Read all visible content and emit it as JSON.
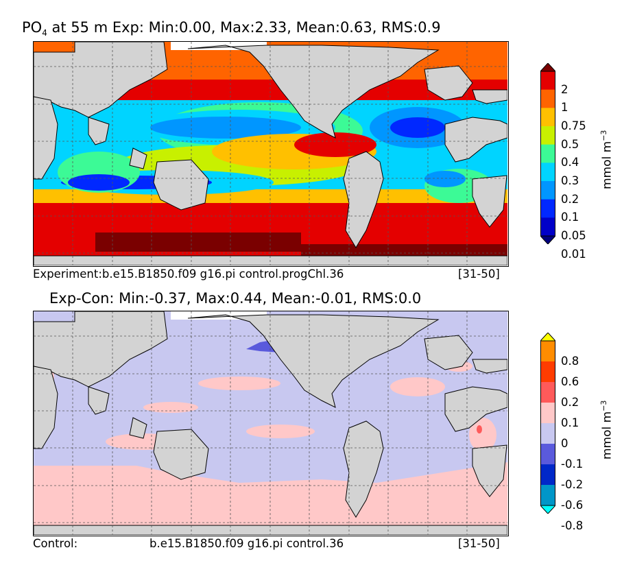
{
  "panel_top": {
    "title_var": "PO",
    "title_sub": "4",
    "title_rest": " at 55 m Exp: Min:0.00, Max:2.33, Mean:0.63, RMS:0.9",
    "caption_left": "Experiment:b.e15.B1850.f09 g16.pi control.progChl.36",
    "caption_right": "[31-50]",
    "colorbar": {
      "unit": "mmol m",
      "unit_exp": "−3",
      "ticks": [
        "2",
        "1",
        "0.75",
        "0.5",
        "0.4",
        "0.3",
        "0.2",
        "0.1",
        "0.05",
        "0.01"
      ],
      "colors": [
        "#7a0000",
        "#e40000",
        "#ff6400",
        "#ffc000",
        "#c8f000",
        "#3cfa96",
        "#00d4ff",
        "#0096ff",
        "#0028ff",
        "#0000c8",
        "#000080"
      ]
    }
  },
  "panel_bottom": {
    "title": "Exp-Con: Min:-0.37, Max:0.44, Mean:-0.01, RMS:0.0",
    "caption_left": "Control:",
    "caption_mid": "b.e15.B1850.f09 g16.pi control.36",
    "caption_right": "[31-50]",
    "colorbar": {
      "unit": "mmol m",
      "unit_exp": "−3",
      "ticks": [
        "0.8",
        "0.6",
        "0.2",
        "0.1",
        "0",
        "-0.1",
        "-0.2",
        "-0.6",
        "-0.8"
      ],
      "colors": [
        "#ffff00",
        "#ff8c00",
        "#ff3c00",
        "#ff5a5a",
        "#ffc8c8",
        "#c8c8f0",
        "#5a5adc",
        "#0028c8",
        "#0096c8",
        "#00ffff"
      ]
    }
  },
  "colors": {
    "land": "#d3d3d3",
    "ice": "#ffffff"
  }
}
